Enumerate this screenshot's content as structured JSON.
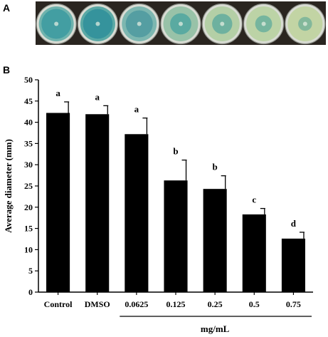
{
  "panel_a": {
    "label": "A",
    "plates": [
      {
        "colony_color": "#3c9aa0",
        "agar_color": "#6fb3ad"
      },
      {
        "colony_color": "#2f8f9a",
        "agar_color": "#5aa9a5"
      },
      {
        "colony_color": "#4d9aa0",
        "agar_color": "#7db7b0"
      },
      {
        "colony_color": "#4fa6a0",
        "agar_color": "#98c2a8"
      },
      {
        "colony_color": "#62ac9e",
        "agar_color": "#b4cfa6"
      },
      {
        "colony_color": "#6aaf9c",
        "agar_color": "#bcd3a6"
      },
      {
        "colony_color": "#78b39a",
        "agar_color": "#c2d4a4"
      }
    ]
  },
  "panel_b": {
    "label": "B"
  },
  "chart_data": {
    "type": "bar",
    "title": "",
    "xlabel": "mg/mL",
    "ylabel": "Average diameter (mm)",
    "ylim": [
      0,
      50
    ],
    "yticks": [
      0,
      5,
      10,
      15,
      20,
      25,
      30,
      35,
      40,
      45,
      50
    ],
    "categories": [
      "Control",
      "DMSO",
      "0.0625",
      "0.125",
      "0.25",
      "0.5",
      "0.75"
    ],
    "values": [
      42.2,
      41.9,
      37.2,
      26.3,
      24.3,
      18.3,
      12.6
    ],
    "errors": [
      2.6,
      2.0,
      3.8,
      4.8,
      3.1,
      1.4,
      1.5
    ],
    "significance": [
      "a",
      "a",
      "a",
      "b",
      "b",
      "c",
      "d"
    ],
    "bar_color": "#000000",
    "grid": false,
    "legend": "none"
  }
}
